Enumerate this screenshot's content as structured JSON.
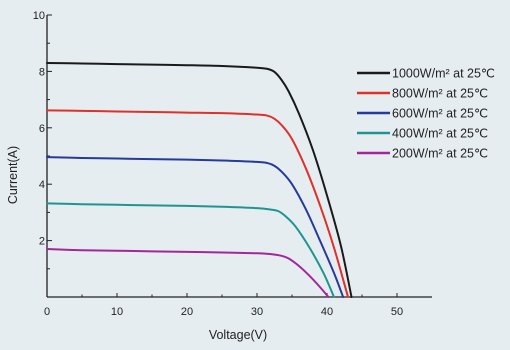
{
  "chart_data": {
    "type": "line",
    "title": "",
    "xlabel": "Voltage(V)",
    "ylabel": "Current(A)",
    "xlim": [
      0,
      55
    ],
    "ylim": [
      0,
      10
    ],
    "xticks": [
      0,
      10,
      20,
      30,
      40,
      50
    ],
    "yticks": [
      2,
      4,
      6,
      8,
      10
    ],
    "grid": false,
    "legend_position": "right",
    "series": [
      {
        "name": "1000W/m² at 25℃",
        "color": "#1a1a1a",
        "x": [
          0,
          5,
          10,
          15,
          20,
          25,
          30,
          31.5,
          32.5,
          33.5,
          34.5,
          36,
          38,
          40,
          42,
          43.5
        ],
        "y": [
          8.3,
          8.28,
          8.26,
          8.24,
          8.22,
          8.19,
          8.13,
          8.09,
          7.98,
          7.7,
          7.3,
          6.5,
          5.2,
          3.6,
          1.8,
          0
        ]
      },
      {
        "name": "800W/m² at 25℃",
        "color": "#e0302a",
        "x": [
          0,
          5,
          10,
          15,
          20,
          25,
          30,
          31.5,
          32.5,
          33.5,
          35,
          37,
          39,
          41,
          43
        ],
        "y": [
          6.62,
          6.6,
          6.58,
          6.56,
          6.54,
          6.52,
          6.47,
          6.43,
          6.32,
          6.1,
          5.6,
          4.55,
          3.25,
          1.75,
          0
        ]
      },
      {
        "name": "600W/m² at 25℃",
        "color": "#263a9c",
        "x": [
          0,
          5,
          10,
          15,
          20,
          25,
          30,
          31.5,
          32.5,
          33.5,
          35,
          37,
          39,
          41,
          42.3
        ],
        "y": [
          4.96,
          4.93,
          4.91,
          4.89,
          4.87,
          4.84,
          4.79,
          4.75,
          4.65,
          4.45,
          4.0,
          3.1,
          2.0,
          0.85,
          0
        ]
      },
      {
        "name": "400W/m² at 25℃",
        "color": "#1f9590",
        "x": [
          0,
          5,
          10,
          15,
          20,
          25,
          30,
          32,
          33,
          34,
          35.5,
          37.5,
          39.5,
          41
        ],
        "y": [
          3.32,
          3.29,
          3.27,
          3.25,
          3.23,
          3.2,
          3.15,
          3.1,
          3.05,
          2.88,
          2.5,
          1.75,
          0.85,
          0
        ]
      },
      {
        "name": "200W/m² at 25℃",
        "color": "#a3279a",
        "x": [
          0,
          5,
          10,
          15,
          20,
          25,
          30,
          32,
          33.5,
          34.5,
          36,
          37.5,
          39,
          40.2
        ],
        "y": [
          1.7,
          1.66,
          1.64,
          1.62,
          1.6,
          1.58,
          1.55,
          1.52,
          1.46,
          1.37,
          1.1,
          0.75,
          0.35,
          0
        ]
      }
    ]
  }
}
